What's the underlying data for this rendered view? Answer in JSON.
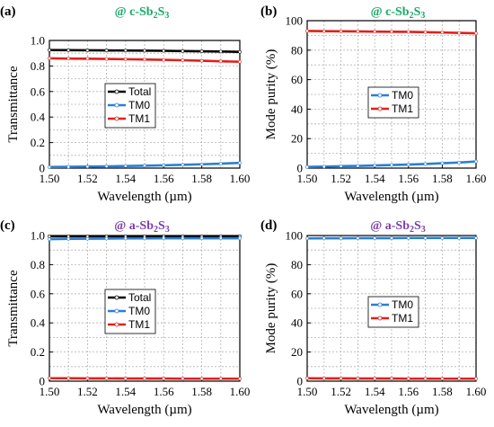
{
  "colors": {
    "total": "#000000",
    "tm0": "#2a7fd4",
    "tm1": "#e0201b",
    "title_c": "#1aa86b",
    "title_a": "#7d3fa8"
  },
  "chart_data": [
    {
      "panel": "(a)",
      "type": "line",
      "title_prefix": "@ c-Sb",
      "title_mid": "S",
      "sub1": "2",
      "sub2": "3",
      "title_color": "#1aa86b",
      "xlabel": "Wavelength (µm)",
      "ylabel": "Transmittance",
      "xlim": [
        1.5,
        1.6
      ],
      "ylim": [
        0,
        1.0
      ],
      "xticks": [
        "1.50",
        "1.52",
        "1.54",
        "1.56",
        "1.58",
        "1.60"
      ],
      "yticks": [
        "0",
        "0.2",
        "0.4",
        "0.6",
        "0.8",
        "1.0"
      ],
      "grid": true,
      "legend_position": "center",
      "x": [
        1.5,
        1.51,
        1.52,
        1.53,
        1.54,
        1.55,
        1.56,
        1.57,
        1.58,
        1.59,
        1.6
      ],
      "series": [
        {
          "name": "Total",
          "color": "#000000",
          "values": [
            0.925,
            0.924,
            0.923,
            0.922,
            0.921,
            0.92,
            0.919,
            0.917,
            0.915,
            0.913,
            0.911
          ]
        },
        {
          "name": "TM0",
          "color": "#2a7fd4",
          "values": [
            0.008,
            0.01,
            0.012,
            0.014,
            0.016,
            0.019,
            0.022,
            0.026,
            0.03,
            0.035,
            0.041
          ]
        },
        {
          "name": "TM1",
          "color": "#e0201b",
          "values": [
            0.86,
            0.858,
            0.857,
            0.855,
            0.853,
            0.851,
            0.848,
            0.845,
            0.841,
            0.837,
            0.833
          ]
        }
      ]
    },
    {
      "panel": "(b)",
      "type": "line",
      "title_prefix": "@ c-Sb",
      "title_mid": "S",
      "sub1": "2",
      "sub2": "3",
      "title_color": "#1aa86b",
      "xlabel": "Wavelength (µm)",
      "ylabel": "Mode purity (%)",
      "xlim": [
        1.5,
        1.6
      ],
      "ylim": [
        0,
        100
      ],
      "xticks": [
        "1.50",
        "1.52",
        "1.54",
        "1.56",
        "1.58",
        "1.60"
      ],
      "yticks": [
        "0",
        "20",
        "40",
        "60",
        "80",
        "100"
      ],
      "grid": true,
      "legend_position": "center",
      "x": [
        1.5,
        1.51,
        1.52,
        1.53,
        1.54,
        1.55,
        1.56,
        1.57,
        1.58,
        1.59,
        1.6
      ],
      "series": [
        {
          "name": "TM0",
          "color": "#2a7fd4",
          "values": [
            0.8,
            1.0,
            1.3,
            1.5,
            1.8,
            2.1,
            2.4,
            2.8,
            3.3,
            3.8,
            4.5
          ]
        },
        {
          "name": "TM1",
          "color": "#e0201b",
          "values": [
            93.0,
            92.9,
            92.8,
            92.7,
            92.6,
            92.5,
            92.4,
            92.2,
            92.0,
            91.7,
            91.4
          ]
        }
      ]
    },
    {
      "panel": "(c)",
      "type": "line",
      "title_prefix": "@ a-Sb",
      "title_mid": "S",
      "sub1": "2",
      "sub2": "3",
      "title_color": "#7d3fa8",
      "xlabel": "Wavelength (µm)",
      "ylabel": "Transmittance",
      "xlim": [
        1.5,
        1.6
      ],
      "ylim": [
        0,
        1.0
      ],
      "xticks": [
        "1.50",
        "1.52",
        "1.54",
        "1.56",
        "1.58",
        "1.60"
      ],
      "yticks": [
        "0",
        "0.2",
        "0.4",
        "0.6",
        "0.8",
        "1.0"
      ],
      "grid": true,
      "legend_position": "center",
      "x": [
        1.5,
        1.51,
        1.52,
        1.53,
        1.54,
        1.55,
        1.56,
        1.57,
        1.58,
        1.59,
        1.6
      ],
      "series": [
        {
          "name": "Total",
          "color": "#000000",
          "values": [
            0.995,
            0.995,
            0.995,
            0.995,
            0.995,
            0.995,
            0.995,
            0.995,
            0.995,
            0.995,
            0.995
          ]
        },
        {
          "name": "TM0",
          "color": "#2a7fd4",
          "values": [
            0.975,
            0.977,
            0.978,
            0.979,
            0.98,
            0.98,
            0.981,
            0.981,
            0.981,
            0.981,
            0.981
          ]
        },
        {
          "name": "TM1",
          "color": "#e0201b",
          "values": [
            0.02,
            0.02,
            0.019,
            0.019,
            0.018,
            0.018,
            0.018,
            0.017,
            0.017,
            0.017,
            0.017
          ]
        }
      ]
    },
    {
      "panel": "(d)",
      "type": "line",
      "title_prefix": "@ a-Sb",
      "title_mid": "S",
      "sub1": "2",
      "sub2": "3",
      "title_color": "#7d3fa8",
      "xlabel": "Wavelength (µm)",
      "ylabel": "Mode purity (%)",
      "xlim": [
        1.5,
        1.6
      ],
      "ylim": [
        0,
        100
      ],
      "xticks": [
        "1.50",
        "1.52",
        "1.54",
        "1.56",
        "1.58",
        "1.60"
      ],
      "yticks": [
        "0",
        "20",
        "40",
        "60",
        "80",
        "100"
      ],
      "grid": true,
      "legend_position": "center",
      "x": [
        1.5,
        1.51,
        1.52,
        1.53,
        1.54,
        1.55,
        1.56,
        1.57,
        1.58,
        1.59,
        1.6
      ],
      "series": [
        {
          "name": "TM0",
          "color": "#2a7fd4",
          "values": [
            98.0,
            98.1,
            98.1,
            98.2,
            98.2,
            98.2,
            98.3,
            98.3,
            98.3,
            98.3,
            98.3
          ]
        },
        {
          "name": "TM1",
          "color": "#e0201b",
          "values": [
            2.0,
            1.9,
            1.9,
            1.8,
            1.8,
            1.8,
            1.7,
            1.7,
            1.7,
            1.7,
            1.7
          ]
        }
      ]
    }
  ]
}
